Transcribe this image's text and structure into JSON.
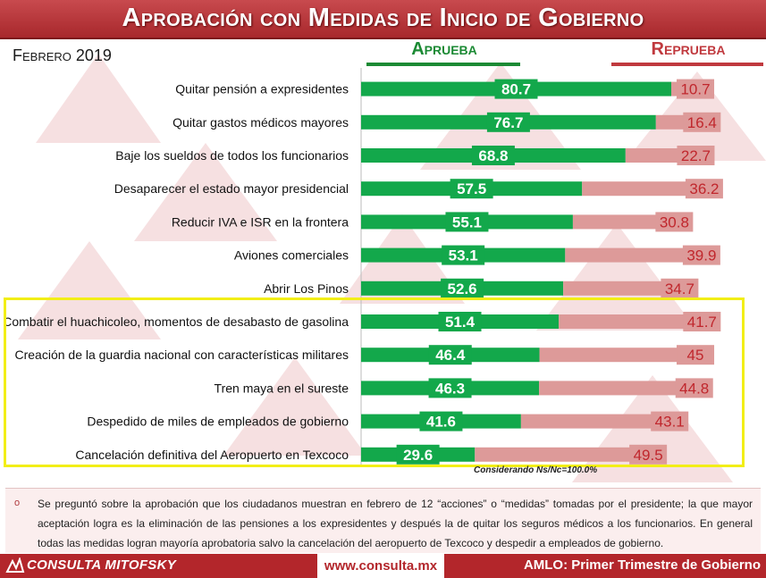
{
  "header": {
    "title": "Aprobación con Medidas de Inicio de Gobierno",
    "subtitle": "Febrero 2019"
  },
  "legend": {
    "approve": "Aprueba",
    "reject": "Reprueba"
  },
  "colors": {
    "approve": "#13a84b",
    "reject": "#dd9a99",
    "reject_text": "#c0272d",
    "title_bg": "#b3262b",
    "highlight": "#f2ee17"
  },
  "chart_data": {
    "type": "bar",
    "orientation": "horizontal",
    "stacked": true,
    "categories": [
      "Quitar pensión a expresidentes",
      "Quitar gastos médicos mayores",
      "Baje los sueldos de todos los funcionarios",
      "Desaparecer el estado mayor presidencial",
      "Reducir IVA e ISR en la frontera",
      "Aviones comerciales",
      "Abrir Los Pinos",
      "Combatir el huachicoleo, momentos de desabasto de gasolina",
      "Creación de la guardia nacional con características militares",
      "Tren maya en el sureste",
      "Despedido de miles de empleados de gobierno",
      "Cancelación definitiva del Aeropuerto en Texcoco"
    ],
    "series": [
      {
        "name": "Aprueba",
        "values": [
          80.7,
          76.7,
          68.8,
          57.5,
          55.1,
          53.1,
          52.6,
          51.4,
          46.4,
          46.3,
          41.6,
          29.6
        ]
      },
      {
        "name": "Reprueba",
        "values": [
          10.7,
          16.4,
          22.7,
          36.2,
          30.8,
          39.9,
          34.7,
          41.7,
          45,
          44.8,
          43.1,
          49.5
        ]
      }
    ],
    "value_labels_approve": [
      "80.7",
      "76.7",
      "68.8",
      "57.5",
      "55.1",
      "53.1",
      "52.6",
      "51.4",
      "46.4",
      "46.3",
      "41.6",
      "29.6"
    ],
    "value_labels_reject": [
      "10.7",
      "16.4",
      "22.7",
      "36.2",
      "30.8",
      "39.9",
      "34.7",
      "41.7",
      "45",
      "44.8",
      "43.1",
      "49.5"
    ],
    "xlim": [
      0,
      100
    ],
    "highlighted_categories": [
      7,
      8,
      9,
      10,
      11
    ]
  },
  "note": "Considerando Ns/Nc=100.0%",
  "footnote": "Se preguntó sobre la aprobación que los ciudadanos muestran en febrero de 12 “acciones” o “medidas” tomadas por el presidente; la que mayor aceptación logra es la eliminación de las pensiones a los expresidentes y después la de quitar los seguros médicos a los funcionarios. En general todas las medidas logran mayoría aprobatoria salvo la cancelación del aeropuerto de Texcoco y despedir a empleados de gobierno.",
  "footer": {
    "brand": "CONSULTA MITOFSKY",
    "url": "www.consulta.mx",
    "right": "AMLO: Primer Trimestre de Gobierno"
  }
}
